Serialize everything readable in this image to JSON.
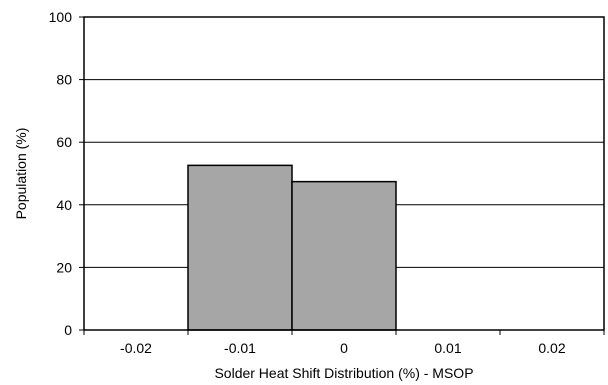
{
  "chart_data": {
    "type": "bar",
    "categories": [
      "-0.02",
      "-0.01",
      "0",
      "0.01",
      "0.02"
    ],
    "values": [
      0,
      52.6,
      47.4,
      0,
      0
    ],
    "xlabel": "Solder Heat Shift Distribution (%) - MSOP",
    "ylabel": "Population (%)",
    "ylim": [
      0,
      100
    ],
    "yticks": [
      "0",
      "20",
      "40",
      "60",
      "80",
      "100"
    ],
    "grid": true,
    "legend": "none",
    "colors": {
      "bar_fill": "#a6a6a6",
      "bar_stroke": "#000000",
      "gridline": "#000000",
      "background": "#ffffff"
    }
  }
}
